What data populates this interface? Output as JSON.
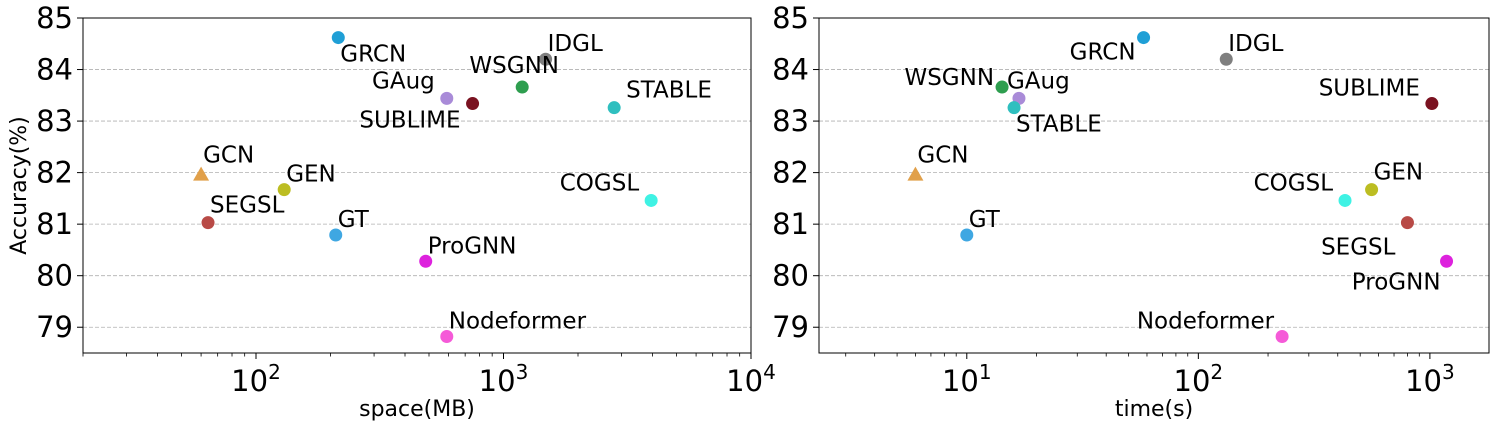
{
  "chart_data": [
    {
      "type": "scatter",
      "xlabel": "space(MB)",
      "ylabel": "Accuracy(%)",
      "x_scale": "log",
      "xlim": [
        20,
        10000
      ],
      "ylim": [
        78.5,
        85
      ],
      "x_ticks": [
        100,
        1000,
        10000
      ],
      "y_ticks": [
        79,
        80,
        81,
        82,
        83,
        84,
        85
      ],
      "grid": "horizontal dashed",
      "points": [
        {
          "label": "GRCN",
          "x": 215,
          "y": 84.62,
          "color": "#1f9fd6",
          "marker": "circle"
        },
        {
          "label": "IDGL",
          "x": 1480,
          "y": 84.2,
          "color": "#7f7f7f",
          "marker": "circle"
        },
        {
          "label": "WSGNN",
          "x": 1190,
          "y": 83.66,
          "color": "#2e9e4f",
          "marker": "circle"
        },
        {
          "label": "GAug",
          "x": 590,
          "y": 83.44,
          "color": "#a98bd8",
          "marker": "circle"
        },
        {
          "label": "SUBLIME",
          "x": 750,
          "y": 83.34,
          "color": "#7a1220",
          "marker": "circle"
        },
        {
          "label": "STABLE",
          "x": 2800,
          "y": 83.26,
          "color": "#2fbfbf",
          "marker": "circle"
        },
        {
          "label": "GCN",
          "x": 60,
          "y": 81.96,
          "color": "#e1a04a",
          "marker": "triangle"
        },
        {
          "label": "GEN",
          "x": 130,
          "y": 81.67,
          "color": "#bcbd22",
          "marker": "circle"
        },
        {
          "label": "COGSL",
          "x": 3950,
          "y": 81.46,
          "color": "#3ff2e4",
          "marker": "circle"
        },
        {
          "label": "SEGSL",
          "x": 64,
          "y": 81.03,
          "color": "#b84a46",
          "marker": "circle"
        },
        {
          "label": "GT",
          "x": 210,
          "y": 80.79,
          "color": "#3fa7e2",
          "marker": "circle"
        },
        {
          "label": "ProGNN",
          "x": 485,
          "y": 80.28,
          "color": "#dd22dd",
          "marker": "circle"
        },
        {
          "label": "Nodeformer",
          "x": 590,
          "y": 78.82,
          "color": "#f55ad8",
          "marker": "circle"
        }
      ]
    },
    {
      "type": "scatter",
      "xlabel": "time(s)",
      "ylabel": "",
      "x_scale": "log",
      "xlim": [
        2.3,
        1800
      ],
      "ylim": [
        78.5,
        85
      ],
      "x_ticks": [
        10,
        100,
        1000
      ],
      "y_ticks": [
        79,
        80,
        81,
        82,
        83,
        84,
        85
      ],
      "grid": "horizontal dashed",
      "points": [
        {
          "label": "GRCN",
          "x": 58,
          "y": 84.62,
          "color": "#1f9fd6",
          "marker": "circle"
        },
        {
          "label": "IDGL",
          "x": 132,
          "y": 84.2,
          "color": "#7f7f7f",
          "marker": "circle"
        },
        {
          "label": "WSGNN",
          "x": 14.2,
          "y": 83.66,
          "color": "#2e9e4f",
          "marker": "circle"
        },
        {
          "label": "GAug",
          "x": 16.8,
          "y": 83.44,
          "color": "#a98bd8",
          "marker": "circle"
        },
        {
          "label": "SUBLIME",
          "x": 1020,
          "y": 83.34,
          "color": "#7a1220",
          "marker": "circle"
        },
        {
          "label": "STABLE",
          "x": 16.0,
          "y": 83.26,
          "color": "#2fbfbf",
          "marker": "circle"
        },
        {
          "label": "GCN",
          "x": 6.0,
          "y": 81.96,
          "color": "#e1a04a",
          "marker": "triangle"
        },
        {
          "label": "GEN",
          "x": 560,
          "y": 81.67,
          "color": "#bcbd22",
          "marker": "circle"
        },
        {
          "label": "COGSL",
          "x": 430,
          "y": 81.46,
          "color": "#3ff2e4",
          "marker": "circle"
        },
        {
          "label": "SEGSL",
          "x": 800,
          "y": 81.03,
          "color": "#b84a46",
          "marker": "circle"
        },
        {
          "label": "GT",
          "x": 10.0,
          "y": 80.79,
          "color": "#3fa7e2",
          "marker": "circle"
        },
        {
          "label": "ProGNN",
          "x": 1180,
          "y": 80.28,
          "color": "#dd22dd",
          "marker": "circle"
        },
        {
          "label": "Nodeformer",
          "x": 230,
          "y": 78.82,
          "color": "#f55ad8",
          "marker": "circle"
        }
      ]
    }
  ]
}
